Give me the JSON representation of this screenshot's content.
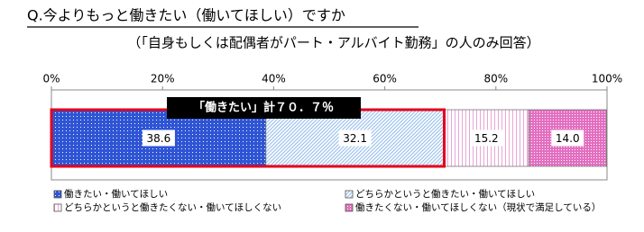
{
  "chart_data": {
    "type": "stacked-bar-horizontal",
    "title": "Q.今よりもっと働きたい（働いてほしい）ですか",
    "subtitle": "（「自身もしくは配偶者がパート・アルバイト勤務」の人のみ回答）",
    "annotation": "「働きたい」計７０．７％",
    "xlim": [
      0,
      100
    ],
    "xticks": [
      {
        "value": 0,
        "label": "0%"
      },
      {
        "value": 20,
        "label": "20%"
      },
      {
        "value": 40,
        "label": "40%"
      },
      {
        "value": 60,
        "label": "60%"
      },
      {
        "value": 80,
        "label": "80%"
      },
      {
        "value": 100,
        "label": "100%"
      }
    ],
    "series": [
      {
        "name": "働きたい・働いてほしい",
        "color": "#2f55d4",
        "values": [
          38.6
        ],
        "value_labels": [
          "38.6"
        ]
      },
      {
        "name": "どちらかというと働きたい・働いてほしい",
        "color": "#9fc3ee",
        "values": [
          32.1
        ],
        "value_labels": [
          "32.1"
        ]
      },
      {
        "name": "どちらかというと働きたくない・働いてほしくない",
        "color": "#e9a6d6",
        "values": [
          15.2
        ],
        "value_labels": [
          "15.2"
        ]
      },
      {
        "name": "働きたくない・働いてほしくない（現状で満足している）",
        "color": "#e36fc0",
        "values": [
          14.0
        ],
        "value_labels": [
          "14.0"
        ]
      }
    ]
  }
}
